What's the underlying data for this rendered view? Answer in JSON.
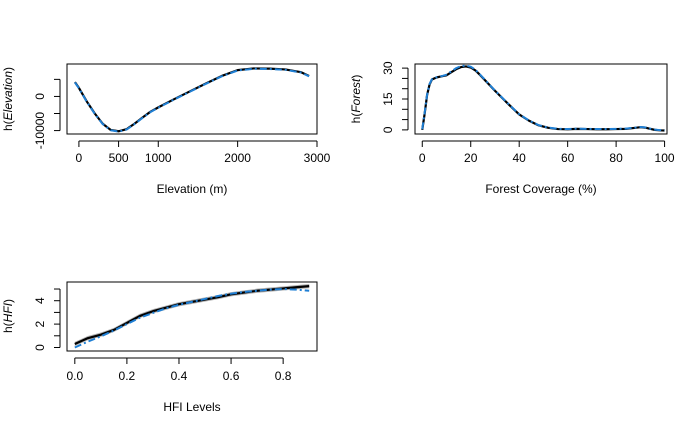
{
  "colors": {
    "fit": "#000000",
    "band": "#9e9e9e",
    "reference": "#1f7fd4",
    "axis": "#000000"
  },
  "chart_data": [
    {
      "type": "line",
      "xlabel": "Elevation (m)",
      "ylabel_func": "h",
      "ylabel_var": "Elevation",
      "xlim": [
        -150,
        3000
      ],
      "ylim": [
        -11000,
        9500
      ],
      "xticks": [
        0,
        500,
        1000,
        2000,
        3000
      ],
      "yticks": [
        -10000,
        0
      ],
      "yminor": [
        -5000,
        5000
      ],
      "grid": false,
      "series": [
        {
          "x": [
            -50,
            0,
            100,
            200,
            300,
            400,
            500,
            600,
            700,
            800,
            900,
            1000,
            1200,
            1400,
            1600,
            1800,
            2000,
            2200,
            2400,
            2600,
            2800,
            2900
          ],
          "y": [
            4200,
            2500,
            -1500,
            -5000,
            -8000,
            -9800,
            -10200,
            -9600,
            -8000,
            -6200,
            -4500,
            -3200,
            -800,
            1500,
            3800,
            6000,
            7700,
            8200,
            8150,
            7900,
            7100,
            6000
          ]
        },
        {
          "x": [
            -50,
            0,
            100,
            200,
            300,
            400,
            500,
            600,
            700,
            800,
            900,
            1000,
            1200,
            1400,
            1600,
            1800,
            2000,
            2200,
            2400,
            2600,
            2800,
            2900
          ],
          "y": [
            4100,
            2400,
            -1600,
            -5100,
            -8100,
            -9900,
            -10300,
            -9700,
            -8100,
            -6300,
            -4600,
            -3300,
            -900,
            1400,
            3700,
            5900,
            7600,
            8100,
            8050,
            7800,
            7000,
            5900
          ]
        }
      ]
    },
    {
      "type": "line",
      "xlabel": "Forest Coverage (%)",
      "ylabel_func": "h",
      "ylabel_var": "Forest",
      "xlim": [
        -3,
        101
      ],
      "ylim": [
        -2,
        32
      ],
      "xticks": [
        0,
        20,
        40,
        60,
        80,
        100
      ],
      "yticks": [
        0,
        15,
        30
      ],
      "yminor": [
        5,
        10,
        20,
        25
      ],
      "grid": false,
      "series": [
        {
          "x": [
            0,
            1,
            2,
            3,
            4,
            6,
            8,
            10,
            12,
            14,
            16,
            18,
            20,
            22,
            24,
            26,
            28,
            30,
            33,
            36,
            40,
            44,
            48,
            52,
            56,
            60,
            64,
            68,
            72,
            76,
            80,
            84,
            88,
            90,
            92,
            94,
            96,
            98,
            100
          ],
          "y": [
            0,
            8,
            17,
            22,
            24.5,
            25.5,
            26,
            26.5,
            28,
            29.5,
            30.5,
            30.8,
            30.3,
            28.8,
            26.5,
            24,
            21.5,
            19,
            15.5,
            12,
            7.5,
            4.5,
            2.2,
            1,
            0.4,
            0.3,
            0.5,
            0.4,
            0.3,
            0.3,
            0.4,
            0.5,
            1,
            1.3,
            1.1,
            0.5,
            0,
            -0.2,
            -0.3
          ]
        },
        {
          "x": [
            0,
            1,
            2,
            3,
            4,
            6,
            8,
            10,
            12,
            14,
            16,
            18,
            20,
            22,
            24,
            26,
            28,
            30,
            33,
            36,
            40,
            44,
            48,
            52,
            56,
            60,
            64,
            68,
            72,
            76,
            80,
            84,
            88,
            90,
            92,
            94,
            96,
            98,
            100
          ],
          "y": [
            0.3,
            8.4,
            17.2,
            22.3,
            24.6,
            25.6,
            26.1,
            26.8,
            28.4,
            30,
            31,
            31.2,
            30.7,
            29.1,
            26.7,
            24.2,
            21.6,
            19.1,
            15.6,
            12.1,
            7.6,
            4.6,
            2.3,
            1.1,
            0.5,
            0.4,
            0.6,
            0.5,
            0.4,
            0.4,
            0.5,
            0.6,
            1.1,
            1.4,
            1.2,
            0.6,
            0.1,
            -0.1,
            -0.2
          ]
        }
      ]
    },
    {
      "type": "line",
      "xlabel": "HFI Levels",
      "ylabel_func": "h",
      "ylabel_var": "HFI",
      "xlim": [
        -0.03,
        0.93
      ],
      "ylim": [
        -0.3,
        5.6
      ],
      "xticks": [
        0.0,
        0.2,
        0.4,
        0.6,
        0.8
      ],
      "xticklabels": [
        "0.0",
        "0.2",
        "0.4",
        "0.6",
        "0.8"
      ],
      "yticks": [
        0,
        2,
        4
      ],
      "yminor": [
        1,
        3,
        5
      ],
      "grid": false,
      "series": [
        {
          "x": [
            0,
            0.05,
            0.1,
            0.15,
            0.2,
            0.25,
            0.3,
            0.35,
            0.4,
            0.45,
            0.5,
            0.55,
            0.6,
            0.65,
            0.7,
            0.75,
            0.8,
            0.85,
            0.9
          ],
          "y": [
            0.3,
            0.8,
            1.1,
            1.5,
            2.1,
            2.7,
            3.1,
            3.4,
            3.7,
            3.9,
            4.1,
            4.3,
            4.55,
            4.7,
            4.85,
            4.95,
            5.05,
            5.15,
            5.25
          ],
          "band": 0.18
        },
        {
          "x": [
            0,
            0.05,
            0.1,
            0.15,
            0.2,
            0.25,
            0.3,
            0.35,
            0.4,
            0.45,
            0.5,
            0.55,
            0.6,
            0.65,
            0.7,
            0.75,
            0.8,
            0.85,
            0.9
          ],
          "y": [
            0.0,
            0.5,
            0.95,
            1.45,
            2.0,
            2.55,
            2.95,
            3.35,
            3.65,
            3.9,
            4.15,
            4.4,
            4.6,
            4.75,
            4.85,
            4.95,
            5.0,
            4.95,
            4.85
          ]
        }
      ]
    }
  ]
}
